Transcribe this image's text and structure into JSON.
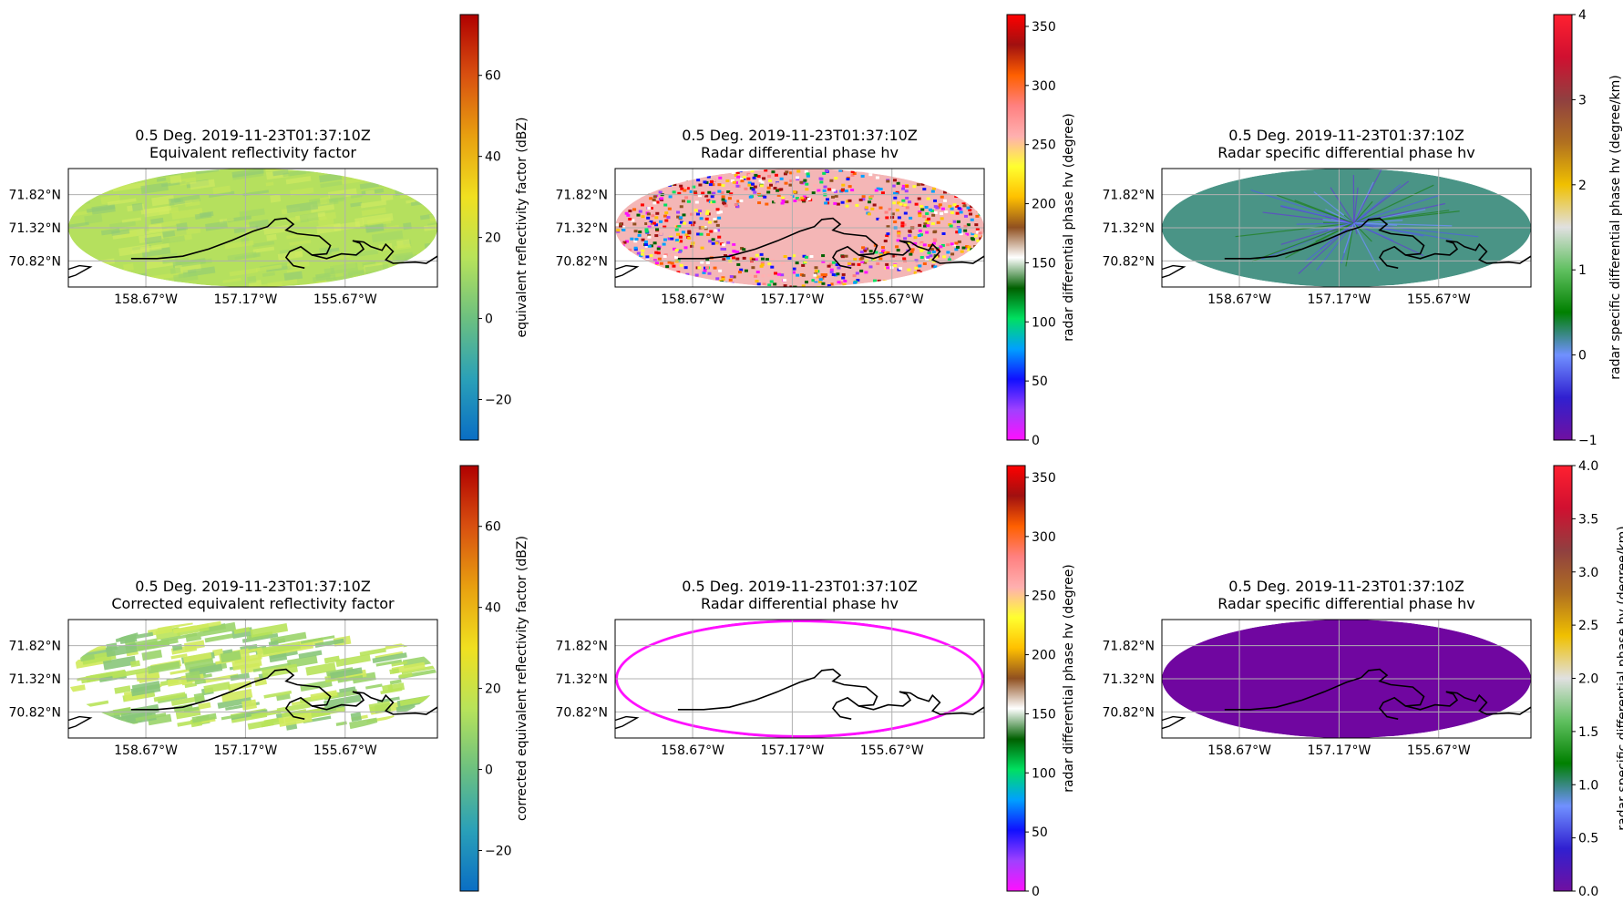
{
  "chart_data": [
    {
      "type": "heatmap",
      "title": "0.5 Deg. 2019-11-23T01:37:10Z",
      "subtitle": "Equivalent reflectivity factor",
      "lat_ticks": [
        "71.82°N",
        "71.32°N",
        "70.82°N"
      ],
      "lon_ticks": [
        "158.67°W",
        "157.17°W",
        "155.67°W"
      ],
      "grid": true,
      "field": "noise",
      "field_color": "#b5e05e",
      "colorbar": {
        "label": "equivalent reflectivity factor (dBZ)",
        "min": -30,
        "max": 75,
        "ticks": [
          -20,
          0,
          20,
          40,
          60
        ],
        "tick_labels": [
          "−20",
          "0",
          "20",
          "40",
          "60"
        ],
        "colors": [
          "#0a6ec4",
          "#2aa0b8",
          "#6cc080",
          "#b8e35a",
          "#f0e020",
          "#e8a010",
          "#d85010",
          "#b00000"
        ]
      }
    },
    {
      "type": "heatmap",
      "title": "0.5 Deg. 2019-11-23T01:37:10Z",
      "subtitle": "Radar differential phase hv",
      "lat_ticks": [
        "71.82°N",
        "71.32°N",
        "70.82°N"
      ],
      "lon_ticks": [
        "158.67°W",
        "157.17°W",
        "155.67°W"
      ],
      "grid": true,
      "field": "speckle",
      "field_color": "#f4b6b6",
      "colorbar": {
        "label": "radar differential phase hv (degree)",
        "min": 0,
        "max": 360,
        "ticks": [
          0,
          50,
          100,
          150,
          200,
          250,
          300,
          350
        ],
        "tick_labels": [
          "0",
          "50",
          "100",
          "150",
          "200",
          "250",
          "300",
          "350"
        ],
        "colors": [
          "#ff10ff",
          "#a040ff",
          "#1010ff",
          "#00a0ff",
          "#00e060",
          "#006000",
          "#ffffff",
          "#905020",
          "#ffc000",
          "#ffff30",
          "#ffb0b0",
          "#ff8080",
          "#ff6000",
          "#a01010",
          "#ff0000"
        ]
      }
    },
    {
      "type": "heatmap",
      "title": "0.5 Deg. 2019-11-23T01:37:10Z",
      "subtitle": "Radar specific differential phase hv",
      "lat_ticks": [
        "71.82°N",
        "71.32°N",
        "70.82°N"
      ],
      "lon_ticks": [
        "158.67°W",
        "157.17°W",
        "155.67°W"
      ],
      "grid": true,
      "field": "rays",
      "field_color": "#4a9486",
      "colorbar": {
        "label": "radar specific differential phase hv (degree/km)",
        "min": -1,
        "max": 4,
        "ticks": [
          -1,
          0,
          1,
          2,
          3,
          4
        ],
        "tick_labels": [
          "−1",
          "0",
          "1",
          "2",
          "3",
          "4"
        ],
        "colors": [
          "#7010a0",
          "#3020d0",
          "#7090ff",
          "#008000",
          "#60c060",
          "#e0e0e0",
          "#f0c000",
          "#b07020",
          "#904040",
          "#d01030",
          "#ff2030"
        ]
      }
    },
    {
      "type": "heatmap",
      "title": "0.5 Deg. 2019-11-23T01:37:10Z",
      "subtitle": "Corrected equivalent reflectivity factor",
      "lat_ticks": [
        "71.82°N",
        "71.32°N",
        "70.82°N"
      ],
      "lon_ticks": [
        "158.67°W",
        "157.17°W",
        "155.67°W"
      ],
      "grid": true,
      "field": "streaks",
      "field_color": "#b5e05e",
      "colorbar": {
        "label": "corrected equivalent reflectivity factor (dBZ)",
        "min": -30,
        "max": 75,
        "ticks": [
          -20,
          0,
          20,
          40,
          60
        ],
        "tick_labels": [
          "−20",
          "0",
          "20",
          "40",
          "60"
        ],
        "colors": [
          "#0a6ec4",
          "#2aa0b8",
          "#6cc080",
          "#b8e35a",
          "#f0e020",
          "#e8a010",
          "#d85010",
          "#b00000"
        ]
      }
    },
    {
      "type": "heatmap",
      "title": "0.5 Deg. 2019-11-23T01:37:10Z",
      "subtitle": "Radar differential phase hv",
      "lat_ticks": [
        "71.82°N",
        "71.32°N",
        "70.82°N"
      ],
      "lon_ticks": [
        "158.67°W",
        "157.17°W",
        "155.67°W"
      ],
      "grid": true,
      "field": "ring",
      "field_color": "#ff10ff",
      "colorbar": {
        "label": "radar differential phase hv (degree)",
        "min": 0,
        "max": 360,
        "ticks": [
          0,
          50,
          100,
          150,
          200,
          250,
          300,
          350
        ],
        "tick_labels": [
          "0",
          "50",
          "100",
          "150",
          "200",
          "250",
          "300",
          "350"
        ],
        "colors": [
          "#ff10ff",
          "#a040ff",
          "#1010ff",
          "#00a0ff",
          "#00e060",
          "#006000",
          "#ffffff",
          "#905020",
          "#ffc000",
          "#ffff30",
          "#ffb0b0",
          "#ff8080",
          "#ff6000",
          "#a01010",
          "#ff0000"
        ]
      }
    },
    {
      "type": "heatmap",
      "title": "0.5 Deg. 2019-11-23T01:37:10Z",
      "subtitle": "Radar specific differential phase hv",
      "lat_ticks": [
        "71.82°N",
        "71.32°N",
        "70.82°N"
      ],
      "lon_ticks": [
        "158.67°W",
        "157.17°W",
        "155.67°W"
      ],
      "grid": true,
      "field": "solid",
      "field_color": "#7006a0",
      "colorbar": {
        "label": "radar specific differential phase hv (degree/km)",
        "min": 0,
        "max": 4,
        "ticks": [
          0,
          0.5,
          1,
          1.5,
          2,
          2.5,
          3,
          3.5,
          4
        ],
        "tick_labels": [
          "0.0",
          "0.5",
          "1.0",
          "1.5",
          "2.0",
          "2.5",
          "3.0",
          "3.5",
          "4.0"
        ],
        "colors": [
          "#7010a0",
          "#3020d0",
          "#7090ff",
          "#008000",
          "#60c060",
          "#e0e0e0",
          "#f0c000",
          "#b07020",
          "#904040",
          "#d01030",
          "#ff2030"
        ]
      }
    }
  ]
}
